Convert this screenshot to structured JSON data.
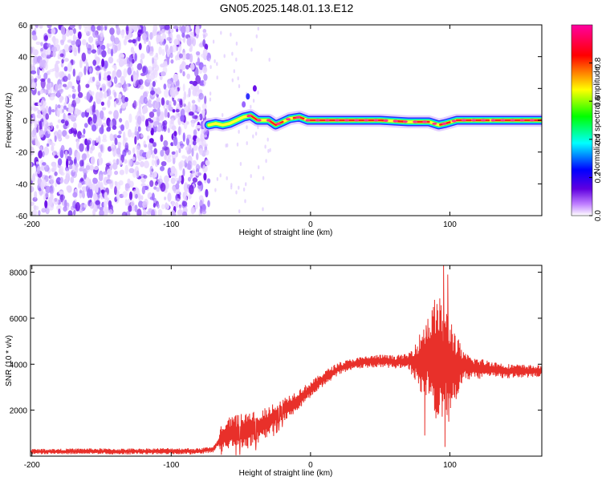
{
  "title": "GN05.2025.148.01.13.E12",
  "chart_data": [
    {
      "type": "heatmap",
      "xlabel": "Height of straight line (km)",
      "ylabel": "Frequency (Hz)",
      "xlim": [
        -201,
        166
      ],
      "ylim": [
        -60,
        60
      ],
      "xticks": [
        -200,
        -100,
        0,
        100
      ],
      "xtick_labels": [
        "-200",
        "-100",
        "0",
        "100"
      ],
      "yticks": [
        60,
        40,
        20,
        0,
        -20,
        -40,
        -60
      ],
      "ytick_labels": [
        "60",
        "40",
        "20",
        "0",
        "-20",
        "-40",
        "-60"
      ],
      "colorbar": {
        "label": "Normalized spectral amplitude",
        "range": [
          0,
          1
        ],
        "ticks": [
          0.0,
          0.2,
          0.4,
          0.6,
          0.8
        ],
        "tick_labels": [
          "0.0",
          "0.2",
          "0.4",
          "0.6",
          "0.8"
        ],
        "colormap": [
          "#ffffff",
          "#c080ff",
          "#6000e0",
          "#0000ff",
          "#00ffff",
          "#00ff00",
          "#ffff00",
          "#ff0000",
          "#ff00a0"
        ]
      },
      "noise_region": {
        "x": [
          -201,
          -73
        ],
        "f": [
          -60,
          60
        ]
      },
      "ridge": [
        {
          "x": -73,
          "f": -3
        },
        {
          "x": -68,
          "f": -2
        },
        {
          "x": -63,
          "f": -3
        },
        {
          "x": -58,
          "f": -2
        },
        {
          "x": -53,
          "f": 0
        },
        {
          "x": -48,
          "f": 2
        },
        {
          "x": -43,
          "f": 3
        },
        {
          "x": -38,
          "f": 0
        },
        {
          "x": -30,
          "f": 0
        },
        {
          "x": -25,
          "f": -3
        },
        {
          "x": -20,
          "f": -1
        },
        {
          "x": -15,
          "f": 1
        },
        {
          "x": -8,
          "f": 2
        },
        {
          "x": -2,
          "f": 0
        },
        {
          "x": 20,
          "f": 0
        },
        {
          "x": 50,
          "f": 0
        },
        {
          "x": 70,
          "f": -1
        },
        {
          "x": 85,
          "f": -1
        },
        {
          "x": 92,
          "f": -3
        },
        {
          "x": 97,
          "f": -2
        },
        {
          "x": 105,
          "f": 0
        },
        {
          "x": 130,
          "f": 0
        },
        {
          "x": 166,
          "f": 0
        }
      ]
    },
    {
      "type": "line",
      "xlabel": "Height of straight line (km)",
      "ylabel": "SNR (10 * v/v)",
      "xlim": [
        -201,
        166
      ],
      "ylim": [
        0,
        8300
      ],
      "xticks": [
        -200,
        -100,
        0,
        100
      ],
      "xtick_labels": [
        "-200",
        "-100",
        "0",
        "100"
      ],
      "yticks": [
        2000,
        4000,
        6000,
        8000
      ],
      "ytick_labels": [
        "2000",
        "4000",
        "6000",
        "8000"
      ],
      "color": "#e8302a",
      "series": [
        {
          "x": [
            -201,
            -180,
            -160,
            -140,
            -120,
            -100,
            -80,
            -70,
            -62,
            -55,
            -48,
            -40,
            -30,
            -20,
            -10,
            0,
            10,
            20,
            30,
            40,
            50,
            60,
            70,
            78,
            84,
            88,
            92,
            96,
            100,
            105,
            110,
            120,
            130,
            140,
            150,
            166
          ],
          "y": [
            200,
            200,
            220,
            200,
            210,
            220,
            210,
            300,
            900,
            1000,
            1100,
            1200,
            1500,
            2000,
            2400,
            2900,
            3400,
            3800,
            4000,
            4100,
            4150,
            4100,
            4150,
            4100,
            4300,
            4200,
            4200,
            4000,
            4000,
            3900,
            3900,
            3800,
            3800,
            3700,
            3700,
            3700
          ]
        }
      ],
      "amplitude": [
        {
          "x": -201,
          "a": 120
        },
        {
          "x": -66,
          "a": 140
        },
        {
          "x": -64,
          "a": 700
        },
        {
          "x": -45,
          "a": 800
        },
        {
          "x": -25,
          "a": 600
        },
        {
          "x": 0,
          "a": 350
        },
        {
          "x": 30,
          "a": 250
        },
        {
          "x": 70,
          "a": 300
        },
        {
          "x": 78,
          "a": 1200
        },
        {
          "x": 92,
          "a": 2800
        },
        {
          "x": 100,
          "a": 2200
        },
        {
          "x": 110,
          "a": 600
        },
        {
          "x": 130,
          "a": 350
        },
        {
          "x": 166,
          "a": 250
        }
      ],
      "spikes": [
        {
          "x": 95.5,
          "y": 8300
        },
        {
          "x": 96.5,
          "y": 400
        },
        {
          "x": 98.5,
          "y": 7900
        },
        {
          "x": 99.2,
          "y": 1500
        },
        {
          "x": 82,
          "y": 900
        },
        {
          "x": 83,
          "y": 5700
        },
        {
          "x": 89,
          "y": 6800
        }
      ]
    }
  ]
}
